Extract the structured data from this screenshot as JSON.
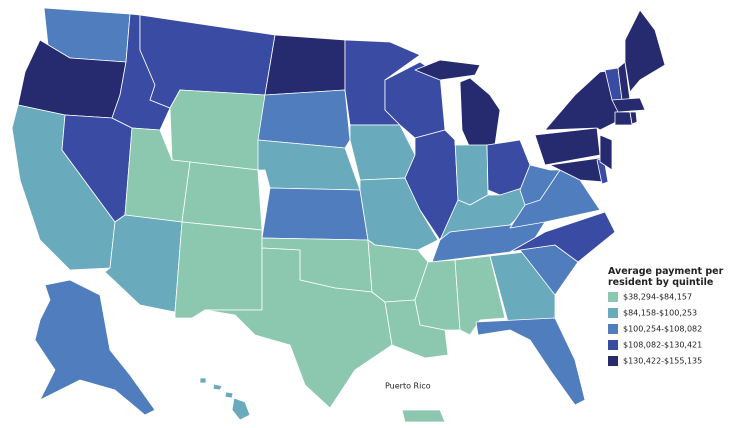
{
  "legend": {
    "title": "Average payment per resident by quintile",
    "items": [
      {
        "label": "$38,294-$84,157",
        "color": "#8cc8b0"
      },
      {
        "label": "$84,158-$100,253",
        "color": "#6aaabd"
      },
      {
        "label": "$100,254-$108,082",
        "color": "#4f7dbd"
      },
      {
        "label": "$108,082-$130,421",
        "color": "#3a4ba3"
      },
      {
        "label": "$130,422-$155,135",
        "color": "#262a6e"
      }
    ]
  },
  "map_labels": {
    "territory": "Puerto Rico"
  }
}
